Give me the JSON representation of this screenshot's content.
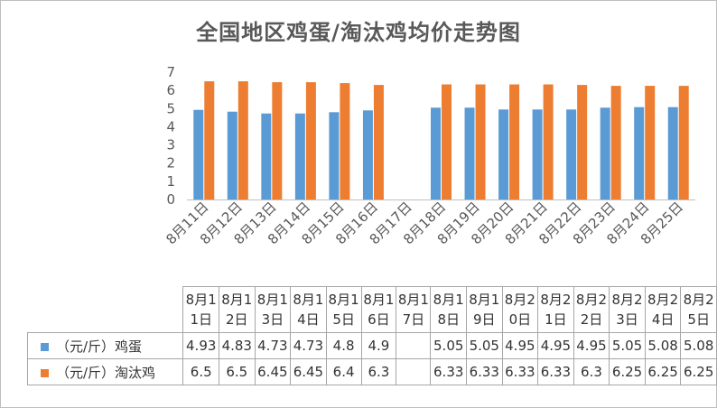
{
  "chart_data": {
    "type": "bar",
    "title": "全国地区鸡蛋/淘汰鸡均价走势图",
    "categories": [
      "8月11日",
      "8月12日",
      "8月13日",
      "8月14日",
      "8月15日",
      "8月16日",
      "8月17日",
      "8月18日",
      "8月19日",
      "8月20日",
      "8月21日",
      "8月22日",
      "8月23日",
      "8月24日",
      "8月25日"
    ],
    "series": [
      {
        "name": "（元/斤）鸡蛋",
        "color": "#5b9bd5",
        "values": [
          4.93,
          4.83,
          4.73,
          4.73,
          4.8,
          4.9,
          null,
          5.05,
          5.05,
          4.95,
          4.95,
          4.95,
          5.05,
          5.08,
          5.08
        ]
      },
      {
        "name": "（元/斤）淘汰鸡",
        "color": "#ed7d31",
        "values": [
          6.5,
          6.5,
          6.45,
          6.45,
          6.4,
          6.3,
          null,
          6.33,
          6.33,
          6.33,
          6.33,
          6.3,
          6.25,
          6.25,
          6.25
        ]
      }
    ],
    "ylim": [
      0,
      7
    ],
    "yticks": [
      0,
      1,
      2,
      3,
      4,
      5,
      6,
      7
    ],
    "grid": false,
    "data_table": true
  }
}
